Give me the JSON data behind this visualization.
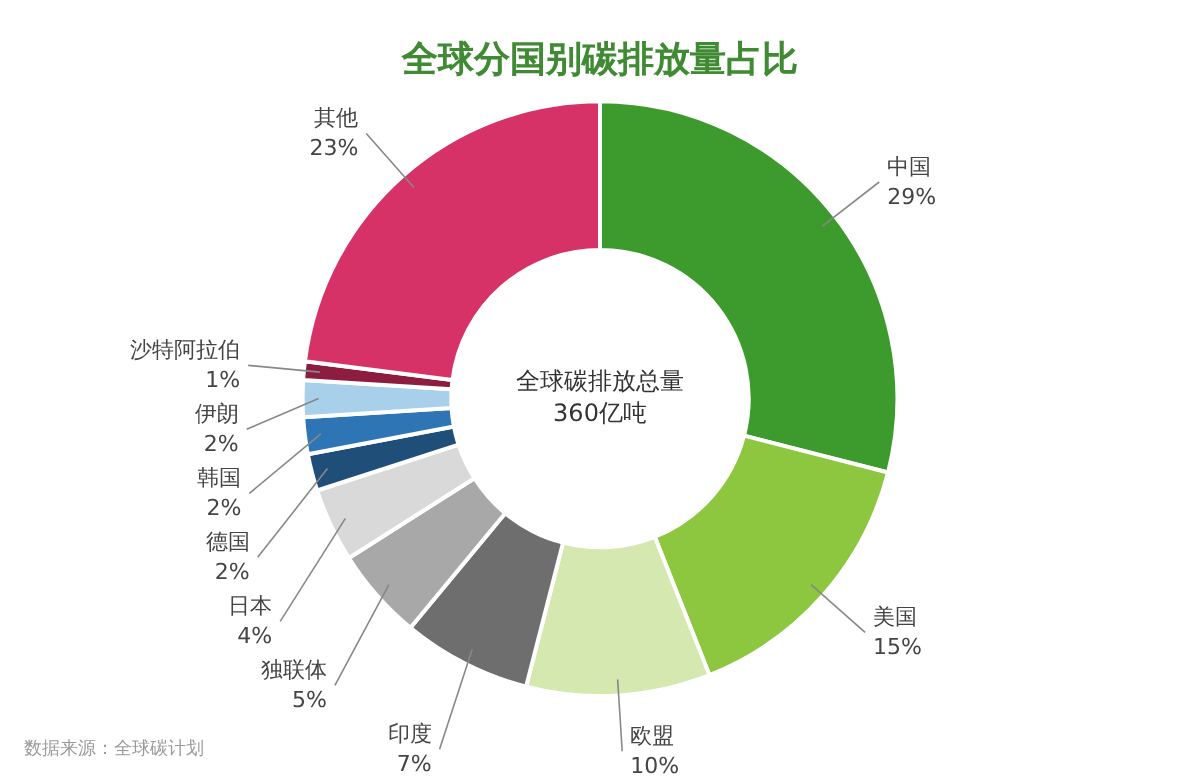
{
  "chart_data": {
    "type": "donut",
    "title": "全球分国别碳排放量占比",
    "categories": [
      "中国",
      "美国",
      "欧盟",
      "印度",
      "独联体",
      "日本",
      "德国",
      "韩国",
      "伊朗",
      "沙特阿拉伯",
      "其他"
    ],
    "values": [
      29,
      15,
      10,
      7,
      5,
      4,
      2,
      2,
      2,
      1,
      23
    ],
    "value_labels": [
      "29%",
      "15%",
      "10%",
      "7%",
      "5%",
      "4%",
      "2%",
      "2%",
      "2%",
      "1%",
      "23%"
    ],
    "colors": [
      "#3d9a2c",
      "#8dc63f",
      "#d5e8b0",
      "#6e6e6e",
      "#a8a8a8",
      "#d9d9d9",
      "#1f4e79",
      "#2e75b6",
      "#a9d0ea",
      "#8c1c40",
      "#d63268"
    ],
    "annotations": [
      "全球碳排放总量\n360亿吨",
      "数据来源：全球碳计划"
    ],
    "legend": false
  }
}
